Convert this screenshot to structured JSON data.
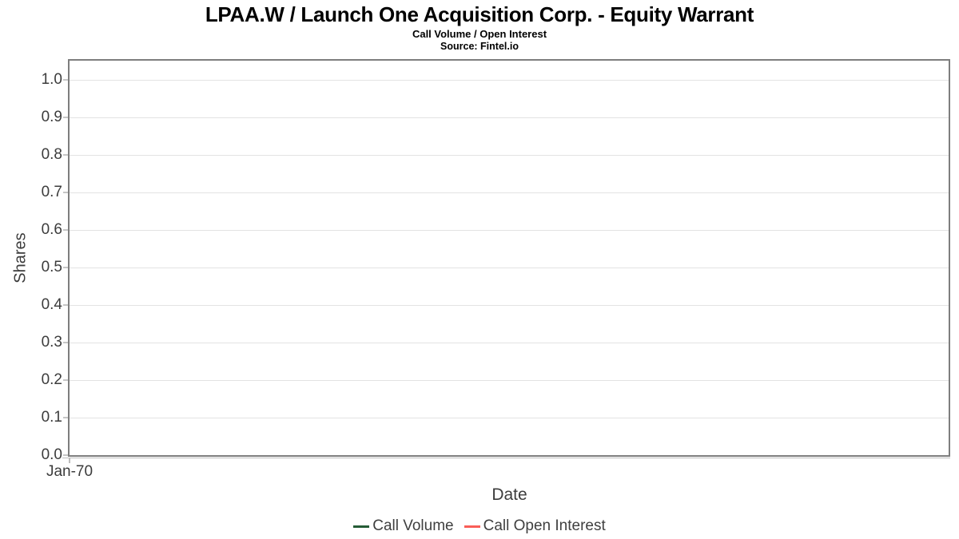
{
  "chart_data": {
    "type": "line",
    "title": "LPAA.W / Launch One Acquisition Corp. - Equity Warrant",
    "subtitle": "Call Volume / Open Interest",
    "source": "Source: Fintel.io",
    "xlabel": "Date",
    "ylabel": "Shares",
    "ylim": [
      0.0,
      1.05
    ],
    "yticks": [
      1.0,
      0.9,
      0.8,
      0.7,
      0.6,
      0.5,
      0.4,
      0.3,
      0.2,
      0.1,
      0.0
    ],
    "xticks": [
      "Jan-70"
    ],
    "grid": true,
    "legend_position": "bottom",
    "empty": true,
    "series": [
      {
        "name": "Call Volume",
        "color": "#255c36",
        "x": [],
        "y": []
      },
      {
        "name": "Call Open Interest",
        "color": "#f95d57",
        "x": [],
        "y": []
      }
    ]
  },
  "colors": {
    "background": "#ffffff",
    "plot_border": "#7e7e7e",
    "gridline": "#e3e3e3",
    "tick_mark": "#c6c6c6",
    "axis_line": "#bdbdbd",
    "axis_text": "#3c3c3c",
    "title_text": "#000000",
    "call_volume": "#255c36",
    "call_open_interest": "#f95d57"
  }
}
